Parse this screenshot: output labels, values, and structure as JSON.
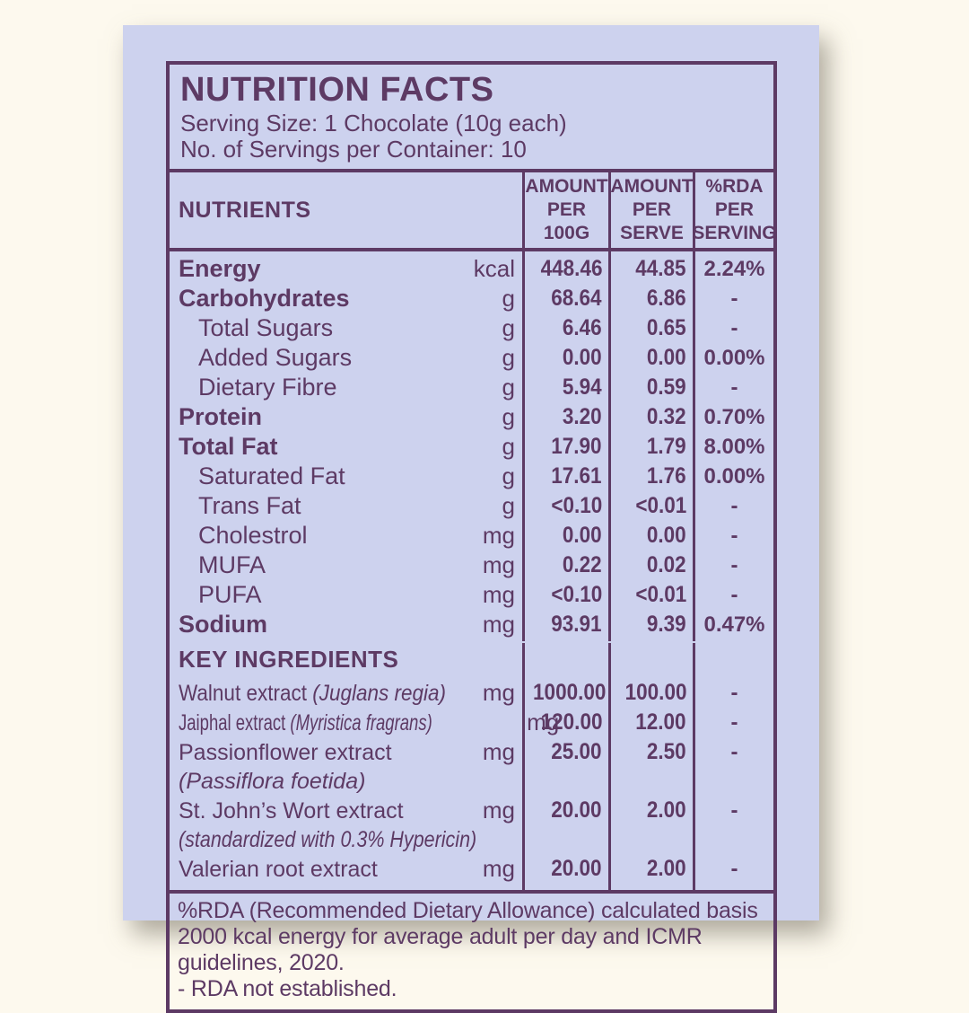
{
  "colors": {
    "background": "#fdf9ee",
    "panel": "#cdd2ee",
    "ink": "#5d3a64"
  },
  "label": {
    "title": "NUTRITION FACTS",
    "serving_size": "Serving Size: 1 Chocolate (10g each)",
    "servings_per_container": "No. of Servings per Container: 10"
  },
  "table": {
    "headers": {
      "nutrients": "NUTRIENTS",
      "per_100g": "AMOUNT\nPER\n100G",
      "per_serve": "AMOUNT\nPER\nSERVE",
      "rda": "%RDA\nPER\nSERVING"
    },
    "rows": [
      {
        "label": "Energy",
        "unit": "kcal",
        "per_100g": "448.46",
        "per_serve": "44.85",
        "rda": "2.24%",
        "bold": true
      },
      {
        "label": "Carbohydrates",
        "unit": "g",
        "per_100g": "68.64",
        "per_serve": "6.86",
        "rda": "-",
        "bold": true
      },
      {
        "label": "Total Sugars",
        "unit": "g",
        "per_100g": "6.46",
        "per_serve": "0.65",
        "rda": "-",
        "indent": true
      },
      {
        "label": "Added Sugars",
        "unit": "g",
        "per_100g": "0.00",
        "per_serve": "0.00",
        "rda": "0.00%",
        "indent": true
      },
      {
        "label": "Dietary Fibre",
        "unit": "g",
        "per_100g": "5.94",
        "per_serve": "0.59",
        "rda": "-",
        "indent": true
      },
      {
        "label": "Protein",
        "unit": "g",
        "per_100g": "3.20",
        "per_serve": "0.32",
        "rda": "0.70%",
        "bold": true
      },
      {
        "label": "Total Fat",
        "unit": "g",
        "per_100g": "17.90",
        "per_serve": "1.79",
        "rda": "8.00%",
        "bold": true
      },
      {
        "label": "Saturated Fat",
        "unit": "g",
        "per_100g": "17.61",
        "per_serve": "1.76",
        "rda": "0.00%",
        "indent": true
      },
      {
        "label": "Trans Fat",
        "unit": "g",
        "per_100g": "<0.10",
        "per_serve": "<0.01",
        "rda": "-",
        "indent": true
      },
      {
        "label": "Cholestrol",
        "unit": "mg",
        "per_100g": "0.00",
        "per_serve": "0.00",
        "rda": "-",
        "indent": true
      },
      {
        "label": "MUFA",
        "unit": "mg",
        "per_100g": "0.22",
        "per_serve": "0.02",
        "rda": "-",
        "indent": true
      },
      {
        "label": "PUFA",
        "unit": "mg",
        "per_100g": "<0.10",
        "per_serve": "<0.01",
        "rda": "-",
        "indent": true
      },
      {
        "label": "Sodium",
        "unit": "mg",
        "per_100g": "93.91",
        "per_serve": "9.39",
        "rda": "0.47%",
        "bold": true
      },
      {
        "section": "KEY INGREDIENTS"
      },
      {
        "label": "Walnut extract",
        "latin": "(Juglans regia)",
        "unit": "mg",
        "per_100g": "1000.00",
        "per_serve": "100.00",
        "rda": "-",
        "condense": "light"
      },
      {
        "label": "Jaiphal extract",
        "latin": "(Myristica fragrans)",
        "unit": "mg",
        "per_100g": "120.00",
        "per_serve": "12.00",
        "rda": "-",
        "condense": "strong"
      },
      {
        "label": "Passionflower extract",
        "sub": "(Passiflora foetida)",
        "unit": "mg",
        "per_100g": "25.00",
        "per_serve": "2.50",
        "rda": "-"
      },
      {
        "label": "St. John’s Wort extract",
        "sub": "(standardized with 0.3% Hypericin)",
        "unit": "mg",
        "per_100g": "20.00",
        "per_serve": "2.00",
        "rda": "-",
        "sub_condense": true
      },
      {
        "label": "Valerian root extract",
        "unit": "mg",
        "per_100g": "20.00",
        "per_serve": "2.00",
        "rda": "-"
      }
    ]
  },
  "footer": {
    "rda_note": "%RDA (Recommended Dietary Allowance) calculated basis 2000 kcal energy for average adult per day and ICMR guidelines, 2020.",
    "dash_note": "- RDA not established."
  }
}
